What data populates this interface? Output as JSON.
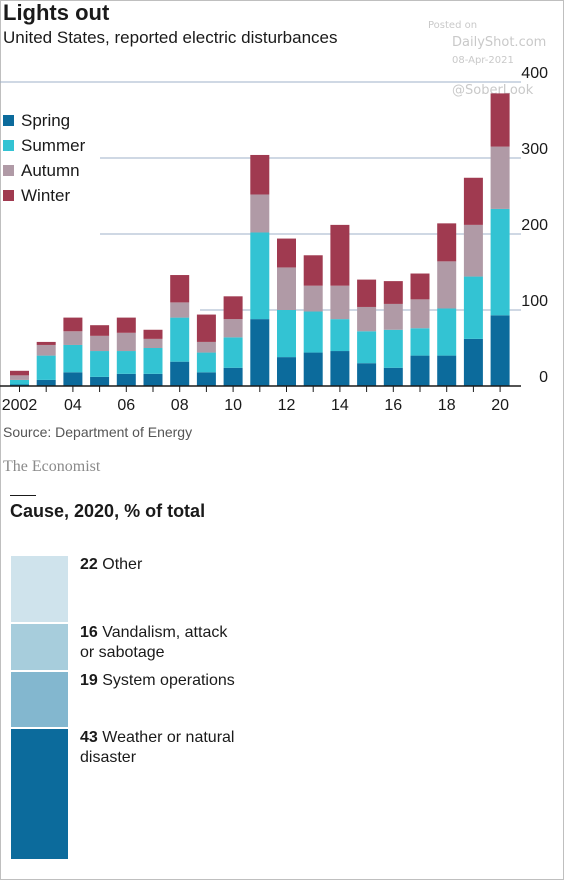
{
  "title": "Lights out",
  "subtitle": "United States, reported electric disturbances",
  "watermark": {
    "posted_on": "Posted on",
    "site": "DailyShot.com",
    "date": "08-Apr-2021",
    "handle": "@SoberLook"
  },
  "legend": [
    {
      "label": "Spring",
      "color": "#0c6b9c"
    },
    {
      "label": "Summer",
      "color": "#33c3d3"
    },
    {
      "label": "Autumn",
      "color": "#b09aa6"
    },
    {
      "label": "Winter",
      "color": "#a03a50"
    }
  ],
  "chart_data": {
    "type": "bar",
    "stacked": true,
    "categories": [
      "2002",
      "2003",
      "2004",
      "2005",
      "2006",
      "2007",
      "2008",
      "2009",
      "2010",
      "2011",
      "2012",
      "2013",
      "2014",
      "2015",
      "2016",
      "2017",
      "2018",
      "2019",
      "2020"
    ],
    "tick_labels": [
      "2002",
      "04",
      "06",
      "08",
      "10",
      "12",
      "14",
      "16",
      "18",
      "20"
    ],
    "series": [
      {
        "name": "Spring",
        "color": "#0c6b9c",
        "values": [
          2,
          8,
          18,
          12,
          16,
          16,
          32,
          18,
          24,
          88,
          38,
          44,
          46,
          30,
          24,
          40,
          40,
          62,
          93
        ]
      },
      {
        "name": "Summer",
        "color": "#33c3d3",
        "values": [
          6,
          32,
          36,
          34,
          30,
          34,
          58,
          26,
          40,
          114,
          62,
          54,
          42,
          42,
          50,
          36,
          62,
          82,
          140
        ]
      },
      {
        "name": "Autumn",
        "color": "#b09aa6",
        "values": [
          6,
          14,
          18,
          20,
          24,
          12,
          20,
          14,
          24,
          50,
          56,
          34,
          44,
          32,
          34,
          38,
          62,
          68,
          82
        ]
      },
      {
        "name": "Winter",
        "color": "#a03a50",
        "values": [
          6,
          4,
          18,
          14,
          20,
          12,
          36,
          36,
          30,
          52,
          38,
          40,
          80,
          36,
          30,
          34,
          50,
          62,
          70
        ]
      }
    ],
    "yticks": [
      0,
      100,
      200,
      300,
      400
    ],
    "ylim": [
      0,
      400
    ],
    "grid": true,
    "legend_position": "top-left"
  },
  "source": "Source: Department of Energy",
  "brand": "The Economist",
  "cause": {
    "title": "Cause, 2020, % of total",
    "items": [
      {
        "value": "22",
        "label": "Other",
        "color": "#cfe3ec"
      },
      {
        "value": "16",
        "label": "Vandalism, attack or sabotage",
        "color": "#a7cddc"
      },
      {
        "value": "19",
        "label": "System operations",
        "color": "#83b7cf"
      },
      {
        "value": "43",
        "label": "Weather or natural disaster",
        "color": "#0c6b9c"
      }
    ]
  }
}
